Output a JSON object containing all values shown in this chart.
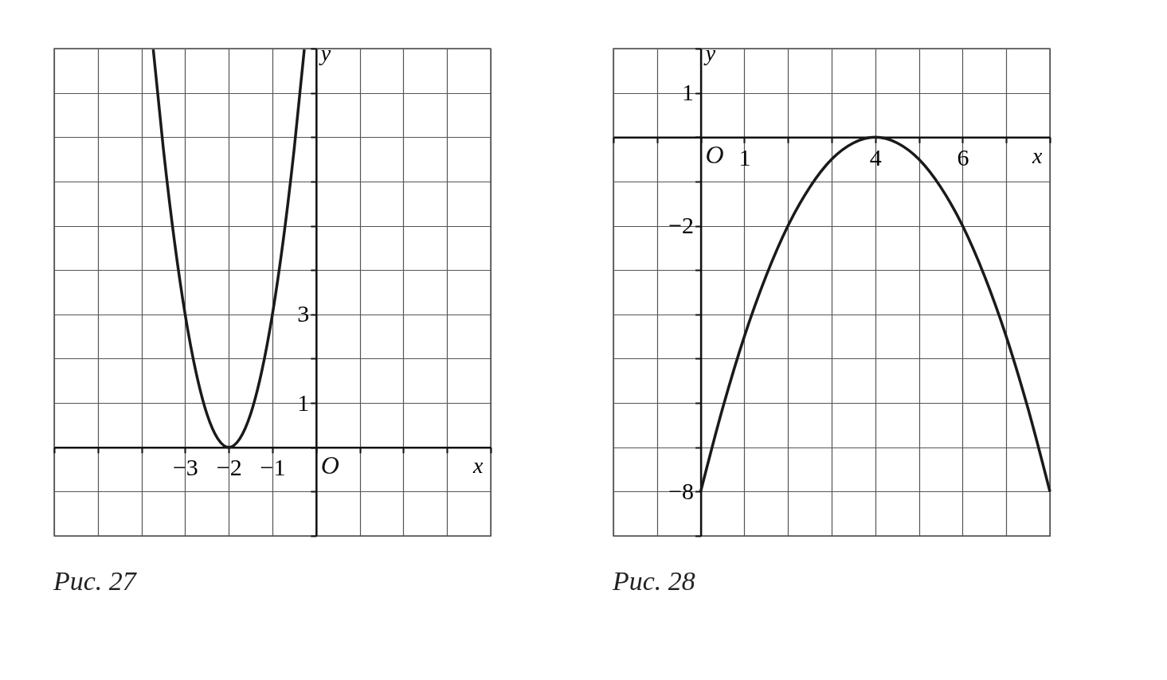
{
  "chart_data": [
    {
      "type": "line",
      "title": "Рис. 27",
      "xlabel": "x",
      "ylabel": "y",
      "grid": true,
      "xlim": [
        -6,
        4
      ],
      "ylim": [
        -2,
        9
      ],
      "xticks": [
        {
          "value": -6,
          "label": null
        },
        {
          "value": -5,
          "label": null
        },
        {
          "value": -4,
          "label": null
        },
        -3,
        -2,
        -1,
        {
          "value": 0,
          "label": null
        },
        {
          "value": 1,
          "label": null
        },
        {
          "value": 2,
          "label": null
        },
        {
          "value": 3,
          "label": null
        },
        {
          "value": 4,
          "label": null
        }
      ],
      "yticks": [
        {
          "value": -2,
          "label": null
        },
        {
          "value": -1,
          "label": null
        },
        {
          "value": 0,
          "label": null
        },
        1,
        {
          "value": 2,
          "label": null
        },
        3,
        {
          "value": 4,
          "label": null
        },
        {
          "value": 5,
          "label": null
        },
        {
          "value": 6,
          "label": null
        },
        {
          "value": 7,
          "label": null
        },
        {
          "value": 8,
          "label": null
        },
        {
          "value": 9,
          "label": null
        }
      ],
      "annotations": [
        "O"
      ],
      "series": [
        {
          "color": "#1a1a1a",
          "x": [
            -3.73,
            -3.5,
            -3.25,
            -3,
            -2.75,
            -2.5,
            -2.25,
            -2,
            -1.75,
            -1.5,
            -1.25,
            -1,
            -0.75,
            -0.5,
            -0.27
          ],
          "values": [
            8.98,
            6.75,
            4.69,
            3,
            1.69,
            0.75,
            0.19,
            0,
            0.19,
            0.75,
            1.69,
            3,
            4.69,
            6.75,
            8.98
          ]
        }
      ]
    },
    {
      "type": "line",
      "title": "Рис. 28",
      "xlabel": "x",
      "ylabel": "y",
      "grid": true,
      "xlim": [
        -2,
        8
      ],
      "ylim": [
        -9,
        2
      ],
      "xticks": [
        {
          "value": -2,
          "label": null
        },
        {
          "value": -1,
          "label": null
        },
        {
          "value": 0,
          "label": null
        },
        1,
        {
          "value": 2,
          "label": null
        },
        {
          "value": 3,
          "label": null
        },
        4,
        {
          "value": 5,
          "label": null
        },
        6,
        {
          "value": 7,
          "label": null
        },
        {
          "value": 8,
          "label": null
        }
      ],
      "yticks": [
        {
          "value": -9,
          "label": null
        },
        -8,
        {
          "value": -7,
          "label": null
        },
        {
          "value": -6,
          "label": null
        },
        {
          "value": -5,
          "label": null
        },
        {
          "value": -4,
          "label": null
        },
        {
          "value": -3,
          "label": null
        },
        -2,
        {
          "value": -1,
          "label": null
        },
        {
          "value": 0,
          "label": null
        },
        1,
        {
          "value": 2,
          "label": null
        }
      ],
      "annotations": [
        "O"
      ],
      "series": [
        {
          "color": "#1a1a1a",
          "x": [
            0,
            0.5,
            1,
            1.5,
            2,
            2.5,
            3,
            3.5,
            4,
            4.5,
            5,
            5.5,
            6,
            6.5,
            7,
            7.5,
            8
          ],
          "values": [
            -8,
            -6.13,
            -4.5,
            -3.13,
            -2,
            -1.13,
            -0.5,
            -0.13,
            0,
            -0.13,
            -0.5,
            -1.13,
            -2,
            -3.13,
            -4.5,
            -6.13,
            -8
          ]
        }
      ]
    }
  ]
}
